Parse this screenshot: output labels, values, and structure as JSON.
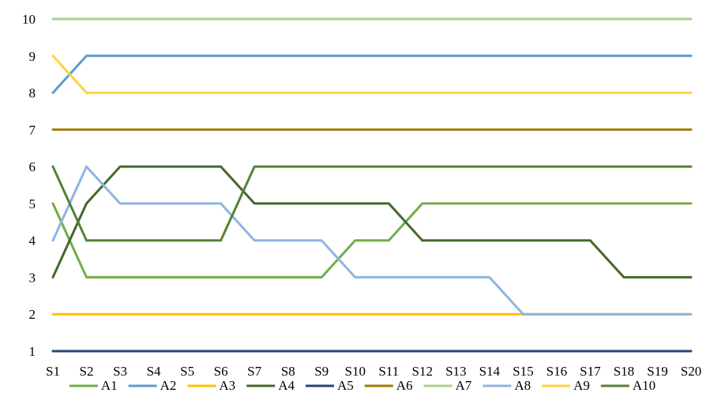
{
  "chart_data": {
    "type": "line",
    "title": "",
    "xlabel": "",
    "ylabel": "",
    "categories": [
      "S1",
      "S2",
      "S3",
      "S4",
      "S5",
      "S6",
      "S7",
      "S8",
      "S9",
      "S10",
      "S11",
      "S12",
      "S13",
      "S14",
      "S15",
      "S16",
      "S17",
      "S18",
      "S19",
      "S20"
    ],
    "ylim": [
      1,
      10
    ],
    "yticks": [
      "1",
      "2",
      "3",
      "4",
      "5",
      "6",
      "7",
      "8",
      "9",
      "10"
    ],
    "grid": false,
    "legend_position": "bottom",
    "series": [
      {
        "name": "A1",
        "color": "#70AD47",
        "values": [
          5,
          3,
          3,
          3,
          3,
          3,
          3,
          3,
          3,
          4,
          4,
          5,
          5,
          5,
          5,
          5,
          5,
          5,
          5,
          5
        ]
      },
      {
        "name": "A2",
        "color": "#5B9BD5",
        "values": [
          8,
          9,
          9,
          9,
          9,
          9,
          9,
          9,
          9,
          9,
          9,
          9,
          9,
          9,
          9,
          9,
          9,
          9,
          9,
          9
        ]
      },
      {
        "name": "A3",
        "color": "#FFC000",
        "values": [
          2,
          2,
          2,
          2,
          2,
          2,
          2,
          2,
          2,
          2,
          2,
          2,
          2,
          2,
          2,
          2,
          2,
          2,
          2,
          2
        ]
      },
      {
        "name": "A4",
        "color": "#43682B",
        "values": [
          3,
          5,
          6,
          6,
          6,
          6,
          5,
          5,
          5,
          5,
          5,
          4,
          4,
          4,
          4,
          4,
          4,
          3,
          3,
          3
        ]
      },
      {
        "name": "A5",
        "color": "#264478",
        "values": [
          1,
          1,
          1,
          1,
          1,
          1,
          1,
          1,
          1,
          1,
          1,
          1,
          1,
          1,
          1,
          1,
          1,
          1,
          1,
          1
        ]
      },
      {
        "name": "A6",
        "color": "#9E7C00",
        "values": [
          7,
          7,
          7,
          7,
          7,
          7,
          7,
          7,
          7,
          7,
          7,
          7,
          7,
          7,
          7,
          7,
          7,
          7,
          7,
          7
        ]
      },
      {
        "name": "A7",
        "color": "#A9D18E",
        "values": [
          10,
          10,
          10,
          10,
          10,
          10,
          10,
          10,
          10,
          10,
          10,
          10,
          10,
          10,
          10,
          10,
          10,
          10,
          10,
          10
        ]
      },
      {
        "name": "A8",
        "color": "#8FB4E3",
        "values": [
          4,
          6,
          5,
          5,
          5,
          5,
          4,
          4,
          4,
          3,
          3,
          3,
          3,
          3,
          2,
          2,
          2,
          2,
          2,
          2
        ]
      },
      {
        "name": "A9",
        "color": "#FFD23F",
        "values": [
          9,
          8,
          8,
          8,
          8,
          8,
          8,
          8,
          8,
          8,
          8,
          8,
          8,
          8,
          8,
          8,
          8,
          8,
          8,
          8
        ]
      },
      {
        "name": "A10",
        "color": "#548235",
        "values": [
          6,
          4,
          4,
          4,
          4,
          4,
          6,
          6,
          6,
          6,
          6,
          6,
          6,
          6,
          6,
          6,
          6,
          6,
          6,
          6
        ]
      }
    ]
  }
}
